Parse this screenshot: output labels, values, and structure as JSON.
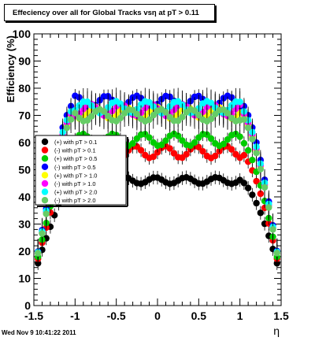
{
  "chart_data": {
    "type": "scatter",
    "title": "Effeciency over all for Global Tracks vsη at pT > 0.11",
    "xlabel": "η",
    "ylabel": "Efficiency (%)",
    "xlim": [
      -1.5,
      1.5
    ],
    "ylim": [
      0,
      100
    ],
    "x_ticks": [
      "-1.5",
      "-1",
      "-0.5",
      "0",
      "0.5",
      "1",
      "1.5"
    ],
    "y_ticks": [
      "0",
      "10",
      "20",
      "30",
      "40",
      "50",
      "60",
      "70",
      "80",
      "90",
      "100"
    ],
    "legend_position": "left",
    "series": [
      {
        "name": "(+) with pT > 0.1",
        "color": "#000000",
        "level": 46
      },
      {
        "name": "(-) with pT > 0.1",
        "color": "#ff0000",
        "level": 56.5
      },
      {
        "name": "(+) with pT > 0.5",
        "color": "#00cc00",
        "level": 61
      },
      {
        "name": "(-) with pT > 0.5",
        "color": "#0000ff",
        "level": 75
      },
      {
        "name": "(+) with pT > 1.0",
        "color": "#ffff00",
        "level": 71
      },
      {
        "name": "(-) with pT > 1.0",
        "color": "#ff00ff",
        "level": 72
      },
      {
        "name": "(+) with pT > 2.0",
        "color": "#00ffff",
        "level": 73
      },
      {
        "name": "(-) with pT > 2.0",
        "color": "#66cc66",
        "level": 70
      }
    ]
  },
  "footer": {
    "timestamp": "Wed Nov  9 10:41:22 2011"
  }
}
